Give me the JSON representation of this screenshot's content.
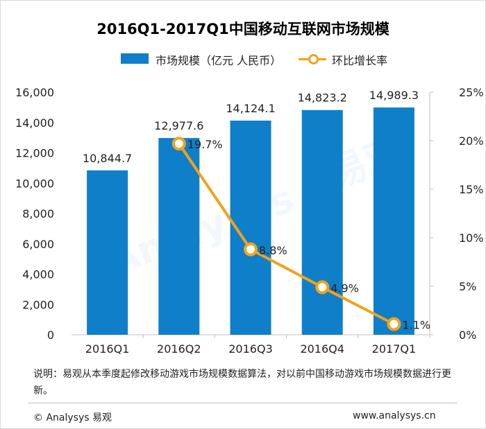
{
  "title": "2016Q1-2017Q1中国移动互联网市场规模",
  "legend": {
    "bar_label": "市场规模（亿元 人民币）",
    "line_label": "环比增长率"
  },
  "colors": {
    "bar": "#0f7fc9",
    "line": "#f3a21a",
    "axis": "#bfbfbf"
  },
  "chart_data": {
    "type": "bar",
    "title": "2016Q1-2017Q1中国移动互联网市场规模",
    "categories": [
      "2016Q1",
      "2016Q2",
      "2016Q3",
      "2016Q4",
      "2017Q1"
    ],
    "series": [
      {
        "name": "市场规模（亿元 人民币）",
        "type": "bar",
        "axis": "left",
        "values": [
          10844.7,
          12977.6,
          14124.1,
          14823.2,
          14989.3
        ],
        "labels": [
          "10,844.7",
          "12,977.6",
          "14,124.1",
          "14,823.2",
          "14,989.3"
        ]
      },
      {
        "name": "环比增长率",
        "type": "line",
        "axis": "right",
        "x": [
          "2016Q2",
          "2016Q3",
          "2016Q4",
          "2017Q1"
        ],
        "values": [
          19.7,
          8.8,
          4.9,
          1.1
        ],
        "labels": [
          "19.7%",
          "8.8%",
          "4.9%",
          "1.1%"
        ]
      }
    ],
    "ylim": [
      0,
      16000
    ],
    "y_ticks": [
      "0",
      "2,000",
      "4,000",
      "6,000",
      "8,000",
      "10,000",
      "12,000",
      "14,000",
      "16,000"
    ],
    "y2lim": [
      0,
      25
    ],
    "y2_ticks": [
      "0%",
      "5%",
      "10%",
      "15%",
      "20%",
      "25%"
    ],
    "grid": false,
    "legend_position": "top"
  },
  "note": "说明：易观从本季度起修改移动游戏市场规模数据算法，对以前中国移动游戏市场规模数据进行更新。",
  "footer": {
    "copyright": "© Analysys 易观",
    "url": "www.analysys.cn"
  },
  "watermark": {
    "brand": "Analysys",
    "brand_cn": "易观"
  }
}
